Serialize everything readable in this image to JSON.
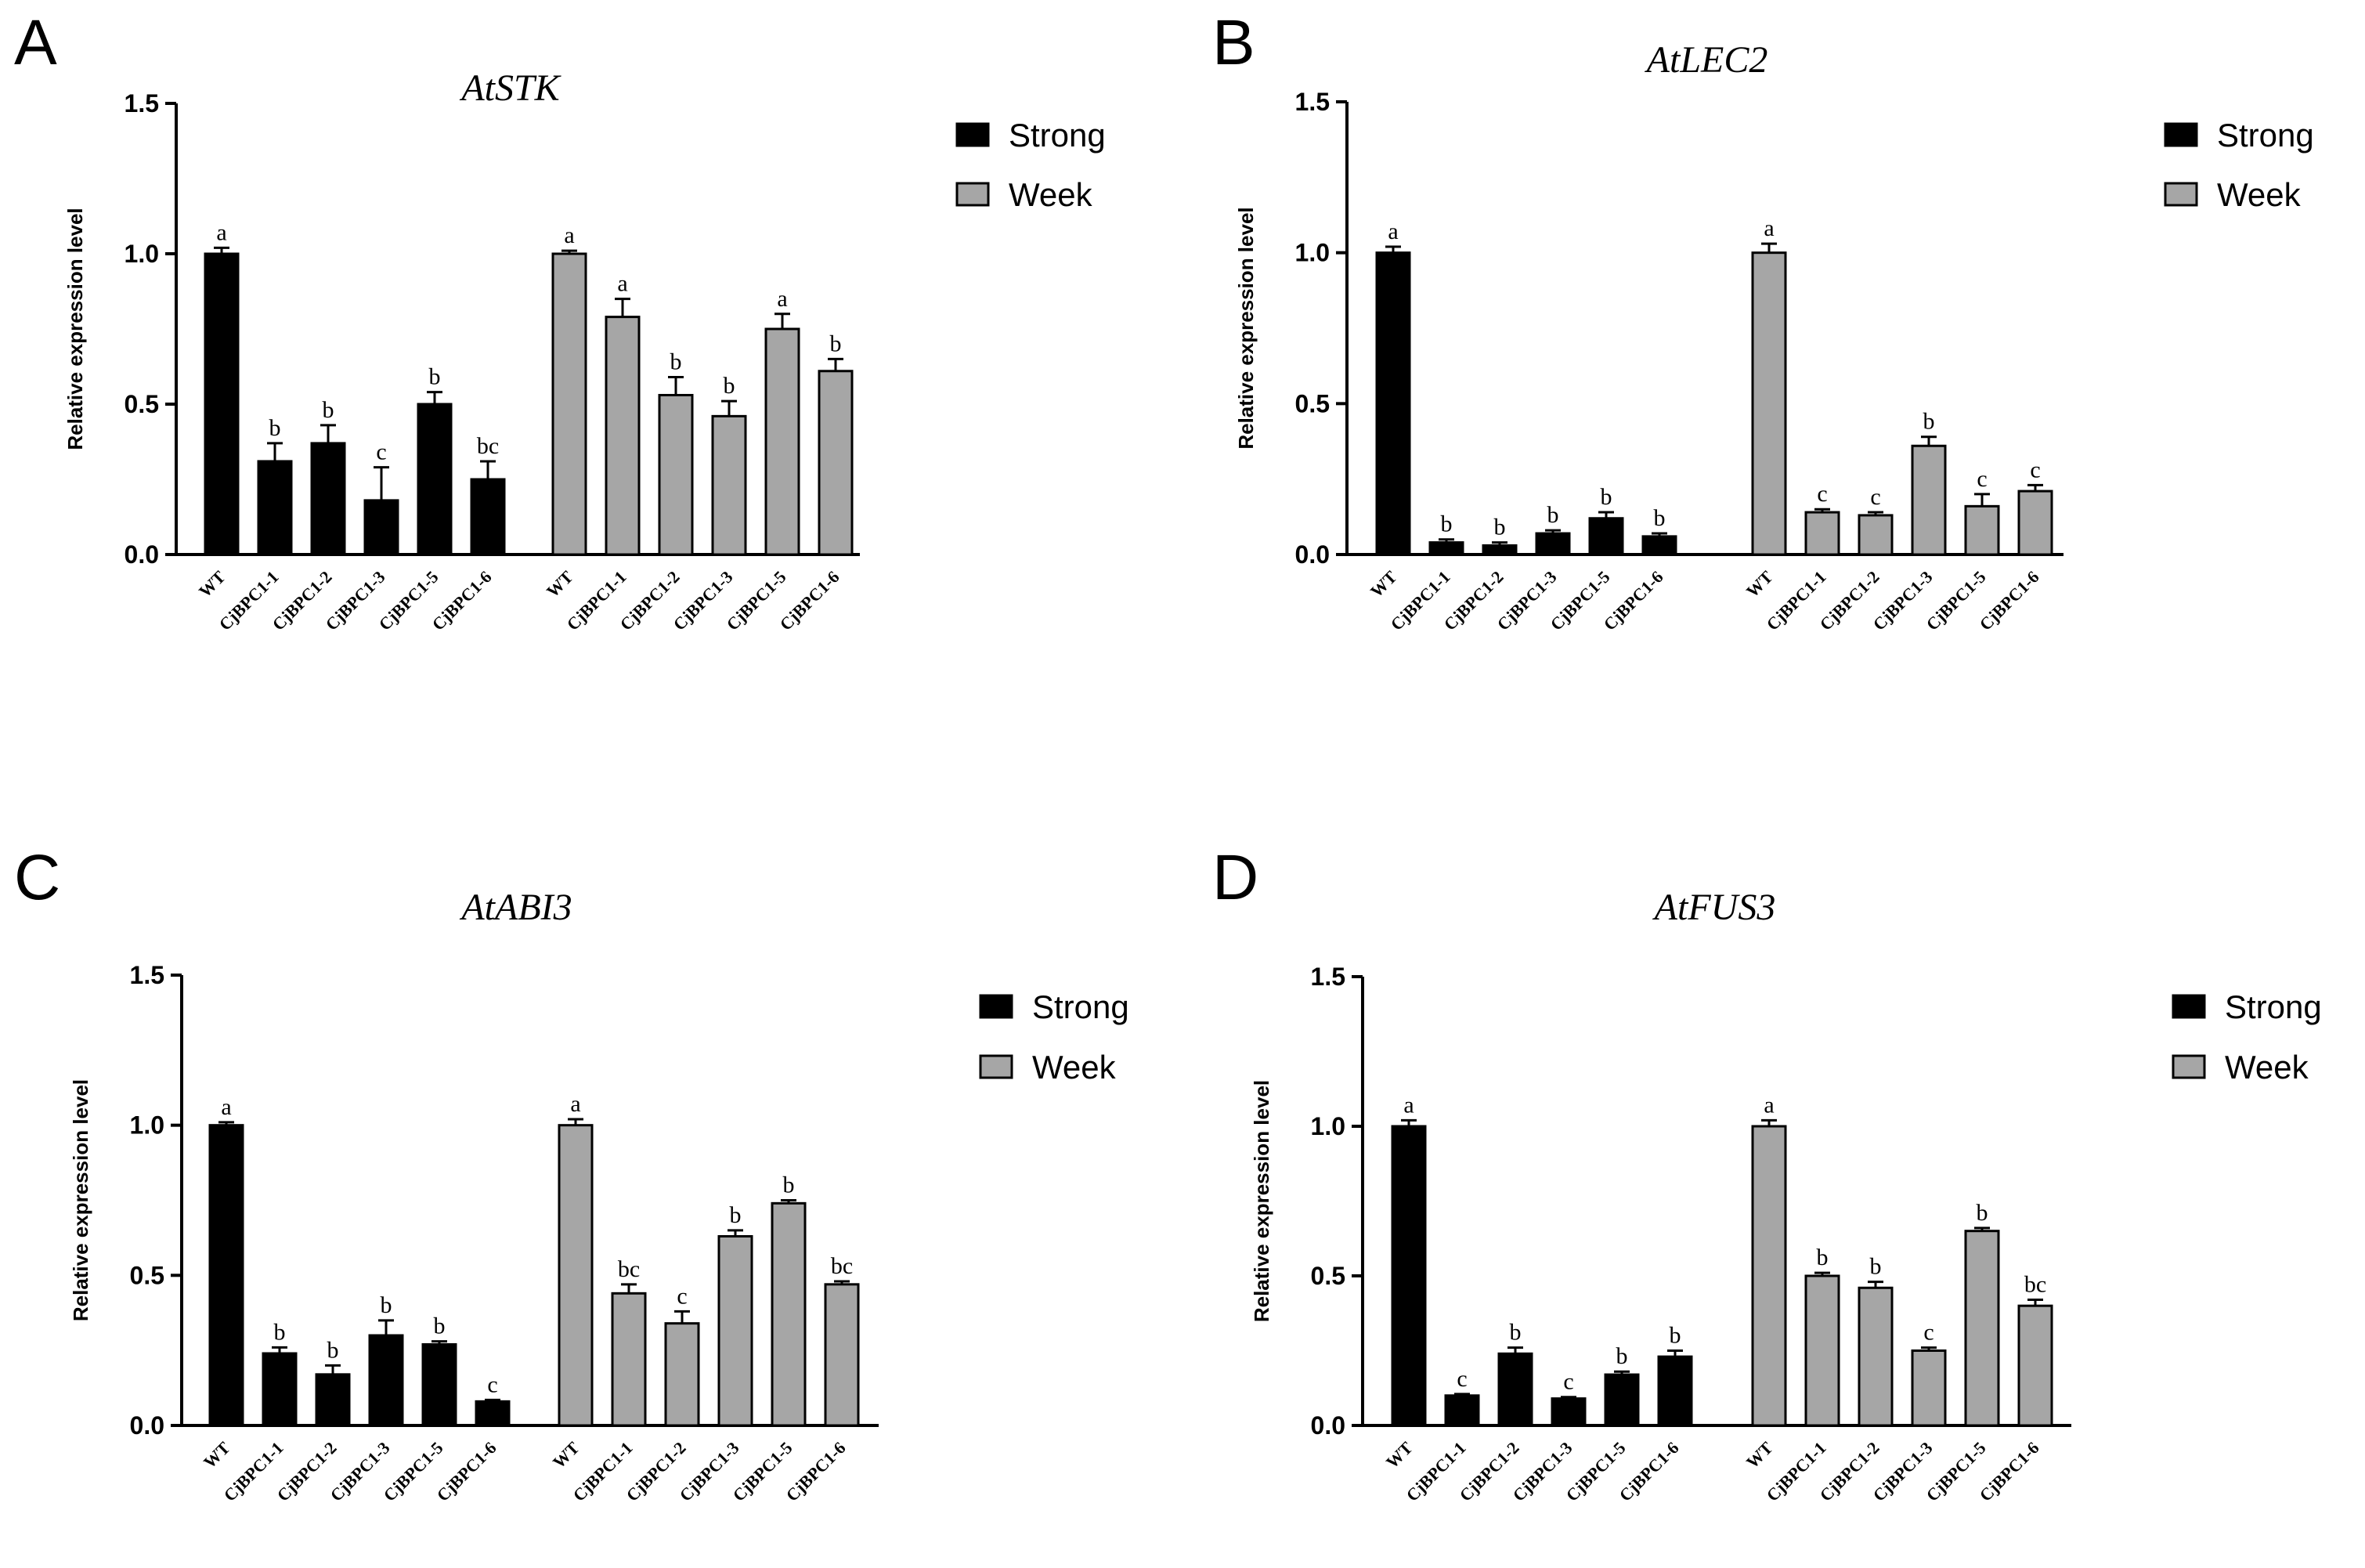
{
  "colors": {
    "strong": "#000000",
    "week": "#a6a6a6",
    "stroke": "#000000"
  },
  "chart_data": [
    {
      "panel": "A",
      "type": "bar",
      "title": "AtSTK",
      "ylabel": "Relative expression level",
      "xlabel": "",
      "ylim": [
        0,
        1.5
      ],
      "yticks": [
        "0.0",
        "0.5",
        "1.0",
        "1.5"
      ],
      "categories": [
        "WT",
        "CjBPC1-1",
        "CjBPC1-2",
        "CjBPC1-3",
        "CjBPC1-5",
        "CjBPC1-6"
      ],
      "legend": [
        "Strong",
        "Week"
      ],
      "series": [
        {
          "name": "Strong",
          "values": [
            1.0,
            0.31,
            0.37,
            0.18,
            0.5,
            0.25
          ],
          "errors": [
            0.02,
            0.06,
            0.06,
            0.11,
            0.04,
            0.06
          ],
          "letters": [
            "a",
            "b",
            "b",
            "c",
            "b",
            "bc"
          ]
        },
        {
          "name": "Week",
          "values": [
            1.0,
            0.79,
            0.53,
            0.46,
            0.75,
            0.61
          ],
          "errors": [
            0.01,
            0.06,
            0.06,
            0.05,
            0.05,
            0.04
          ],
          "letters": [
            "a",
            "a",
            "b",
            "b",
            "a",
            "b"
          ]
        }
      ]
    },
    {
      "panel": "B",
      "type": "bar",
      "title": "AtLEC2",
      "ylabel": "Relative expression level",
      "xlabel": "",
      "ylim": [
        0,
        1.5
      ],
      "yticks": [
        "0.0",
        "0.5",
        "1.0",
        "1.5"
      ],
      "categories": [
        "WT",
        "CjBPC1-1",
        "CjBPC1-2",
        "CjBPC1-3",
        "CjBPC1-5",
        "CjBPC1-6"
      ],
      "legend": [
        "Strong",
        "Week"
      ],
      "series": [
        {
          "name": "Strong",
          "values": [
            1.0,
            0.04,
            0.03,
            0.07,
            0.12,
            0.06
          ],
          "errors": [
            0.02,
            0.01,
            0.01,
            0.01,
            0.02,
            0.01
          ],
          "letters": [
            "a",
            "b",
            "b",
            "b",
            "b",
            "b"
          ]
        },
        {
          "name": "Week",
          "values": [
            1.0,
            0.14,
            0.13,
            0.36,
            0.16,
            0.21
          ],
          "errors": [
            0.03,
            0.01,
            0.01,
            0.03,
            0.04,
            0.02
          ],
          "letters": [
            "a",
            "c",
            "c",
            "b",
            "c",
            "c"
          ]
        }
      ]
    },
    {
      "panel": "C",
      "type": "bar",
      "title": "AtABI3",
      "ylabel": "Relative expression level",
      "xlabel": "",
      "ylim": [
        0,
        1.5
      ],
      "yticks": [
        "0.0",
        "0.5",
        "1.0",
        "1.5"
      ],
      "categories": [
        "WT",
        "CjBPC1-1",
        "CjBPC1-2",
        "CjBPC1-3",
        "CjBPC1-5",
        "CjBPC1-6"
      ],
      "legend": [
        "Strong",
        "Week"
      ],
      "series": [
        {
          "name": "Strong",
          "values": [
            1.0,
            0.24,
            0.17,
            0.3,
            0.27,
            0.08
          ],
          "errors": [
            0.01,
            0.02,
            0.03,
            0.05,
            0.01,
            0.005
          ],
          "letters": [
            "a",
            "b",
            "b",
            "b",
            "b",
            "c"
          ]
        },
        {
          "name": "Week",
          "values": [
            1.0,
            0.44,
            0.34,
            0.63,
            0.74,
            0.47
          ],
          "errors": [
            0.02,
            0.03,
            0.04,
            0.02,
            0.01,
            0.01
          ],
          "letters": [
            "a",
            "bc",
            "c",
            "b",
            "b",
            "bc"
          ]
        }
      ]
    },
    {
      "panel": "D",
      "type": "bar",
      "title": "AtFUS3",
      "ylabel": "Relative expression level",
      "xlabel": "",
      "ylim": [
        0,
        1.5
      ],
      "yticks": [
        "0.0",
        "0.5",
        "1.0",
        "1.5"
      ],
      "categories": [
        "WT",
        "CjBPC1-1",
        "CjBPC1-2",
        "CjBPC1-3",
        "CjBPC1-5",
        "CjBPC1-6"
      ],
      "legend": [
        "Strong",
        "Week"
      ],
      "series": [
        {
          "name": "Strong",
          "values": [
            1.0,
            0.1,
            0.24,
            0.09,
            0.17,
            0.23
          ],
          "errors": [
            0.02,
            0.005,
            0.02,
            0.005,
            0.01,
            0.02
          ],
          "letters": [
            "a",
            "c",
            "b",
            "c",
            "b",
            "b"
          ]
        },
        {
          "name": "Week",
          "values": [
            1.0,
            0.5,
            0.46,
            0.25,
            0.65,
            0.4
          ],
          "errors": [
            0.02,
            0.01,
            0.02,
            0.01,
            0.01,
            0.02
          ],
          "letters": [
            "a",
            "b",
            "b",
            "c",
            "b",
            "bc"
          ]
        }
      ]
    }
  ]
}
